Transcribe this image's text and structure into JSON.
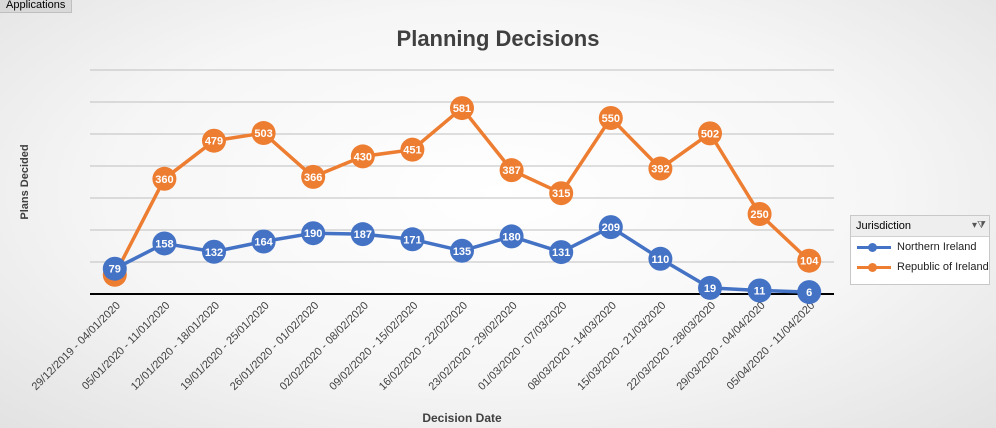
{
  "field_button": "Applications",
  "legend": {
    "header": "Jurisdiction",
    "filter_icon": "filter-dropdown-icon",
    "items": [
      "Northern Ireland",
      "Republic of Ireland"
    ]
  },
  "colors": {
    "northern_ireland": "#4472C4",
    "republic_of_ireland": "#ED7D31",
    "gridline": "#bfbfbf",
    "axis": "#000000"
  },
  "chart_data": {
    "type": "line",
    "title": "Planning Decisions",
    "xlabel": "Decision Date",
    "ylabel": "Plans Decided",
    "ylim": [
      0,
      700
    ],
    "grid": true,
    "legend_position": "right",
    "categories": [
      "29/12/2019 - 04/01/2020",
      "05/01/2020 - 11/01/2020",
      "12/01/2020 - 18/01/2020",
      "19/01/2020 - 25/01/2020",
      "26/01/2020 - 01/02/2020",
      "02/02/2020 - 08/02/2020",
      "09/02/2020 - 15/02/2020",
      "16/02/2020 - 22/02/2020",
      "23/02/2020 - 29/02/2020",
      "01/03/2020 - 07/03/2020",
      "08/03/2020 - 14/03/2020",
      "15/03/2020 - 21/03/2020",
      "22/03/2020 - 28/03/2020",
      "29/03/2020 - 04/04/2020",
      "05/04/2020 - 11/04/2020"
    ],
    "series": [
      {
        "name": "Northern Ireland",
        "values": [
          79,
          158,
          132,
          164,
          190,
          187,
          171,
          135,
          180,
          131,
          209,
          110,
          19,
          11,
          6
        ]
      },
      {
        "name": "Republic of Ireland",
        "values": [
          60,
          360,
          479,
          503,
          366,
          430,
          451,
          581,
          387,
          315,
          550,
          392,
          502,
          250,
          104
        ]
      }
    ]
  }
}
